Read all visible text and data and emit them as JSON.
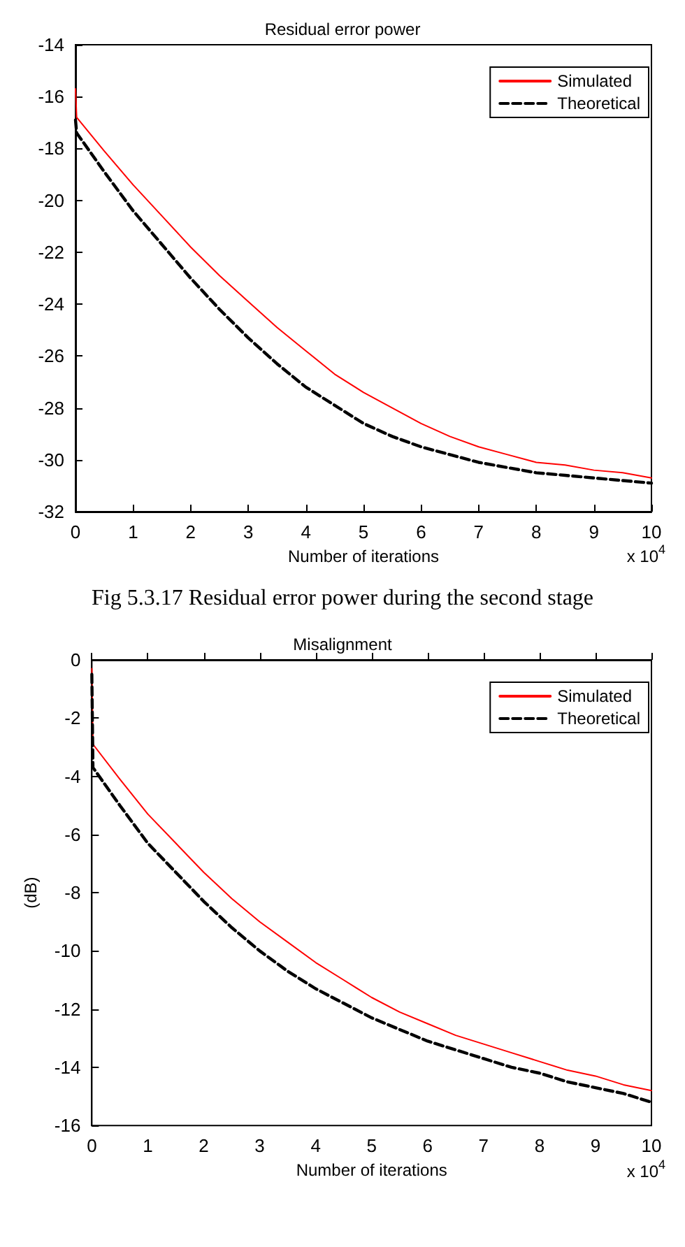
{
  "chart_data": [
    {
      "type": "line",
      "title": "Residual error power",
      "xlabel": "Number of iterations",
      "annotations": [
        "x 10$^{4}$",
        "Fig 5.3.17 Residual error power during the second stage"
      ],
      "xlim": [
        0,
        10
      ],
      "xticks": [
        0,
        1,
        2,
        3,
        4,
        5,
        6,
        7,
        8,
        9,
        10
      ],
      "ylim": [
        -32,
        -14
      ],
      "yticks": [
        -32,
        -30,
        -28,
        -26,
        -24,
        -22,
        -20,
        -18,
        -16,
        -14
      ],
      "grid": false,
      "legend": "top right",
      "marker": "none",
      "series": [
        {
          "name": "Simulated",
          "color": "#ff0000",
          "line_style": "solid",
          "x": [
            0,
            0.02,
            0.5,
            1,
            1.5,
            2,
            2.5,
            3,
            3.5,
            4,
            4.5,
            5,
            5.5,
            6,
            6.5,
            7,
            7.5,
            8,
            8.5,
            9,
            9.5,
            10
          ],
          "values": [
            -15.7,
            -16.8,
            -18.1,
            -19.4,
            -20.6,
            -21.8,
            -22.9,
            -23.9,
            -24.9,
            -25.8,
            -26.7,
            -27.4,
            -28.0,
            -28.6,
            -29.1,
            -29.5,
            -29.8,
            -30.1,
            -30.2,
            -30.4,
            -30.5,
            -30.7
          ]
        },
        {
          "name": "Theoretical",
          "color": "#000000",
          "line_style": "dashed",
          "x": [
            0,
            0.02,
            0.5,
            1,
            1.5,
            2,
            2.5,
            3,
            3.5,
            4,
            4.5,
            5,
            5.5,
            6,
            6.5,
            7,
            7.5,
            8,
            8.5,
            9,
            9.5,
            10
          ],
          "values": [
            -16.9,
            -17.4,
            -18.9,
            -20.4,
            -21.7,
            -23.0,
            -24.2,
            -25.3,
            -26.3,
            -27.2,
            -27.9,
            -28.6,
            -29.1,
            -29.5,
            -29.8,
            -30.1,
            -30.3,
            -30.5,
            -30.6,
            -30.7,
            -30.8,
            -30.9
          ]
        }
      ]
    },
    {
      "type": "line",
      "title": "Misalignment",
      "xlabel": "Number of iterations",
      "ylabel": "(dB)",
      "annotations": [
        "x 10$^{4}$"
      ],
      "xlim": [
        0,
        10
      ],
      "xticks": [
        0,
        1,
        2,
        3,
        4,
        5,
        6,
        7,
        8,
        9,
        10
      ],
      "ylim": [
        -16,
        0
      ],
      "yticks": [
        -16,
        -14,
        -12,
        -10,
        -8,
        -6,
        -4,
        -2,
        0
      ],
      "grid": false,
      "legend": "top right",
      "marker": "none",
      "series": [
        {
          "name": "Simulated",
          "color": "#ff0000",
          "line_style": "solid",
          "x": [
            0,
            0.02,
            0.5,
            1,
            1.5,
            2,
            2.5,
            3,
            3.5,
            4,
            4.5,
            5,
            5.5,
            6,
            6.5,
            7,
            7.5,
            8,
            8.5,
            9,
            9.5,
            10
          ],
          "values": [
            -0.3,
            -2.9,
            -4.1,
            -5.3,
            -6.3,
            -7.3,
            -8.2,
            -9.0,
            -9.7,
            -10.4,
            -11.0,
            -11.6,
            -12.1,
            -12.5,
            -12.9,
            -13.2,
            -13.5,
            -13.8,
            -14.1,
            -14.3,
            -14.6,
            -14.8
          ]
        },
        {
          "name": "Theoretical",
          "color": "#000000",
          "line_style": "dashed",
          "x": [
            0,
            0.02,
            0.5,
            1,
            1.5,
            2,
            2.5,
            3,
            3.5,
            4,
            4.5,
            5,
            5.5,
            6,
            6.5,
            7,
            7.5,
            8,
            8.5,
            9,
            9.5,
            10
          ],
          "values": [
            -0.5,
            -3.7,
            -5.0,
            -6.3,
            -7.3,
            -8.3,
            -9.2,
            -10.0,
            -10.7,
            -11.3,
            -11.8,
            -12.3,
            -12.7,
            -13.1,
            -13.4,
            -13.7,
            -14.0,
            -14.2,
            -14.5,
            -14.7,
            -14.9,
            -15.2
          ]
        }
      ]
    }
  ]
}
